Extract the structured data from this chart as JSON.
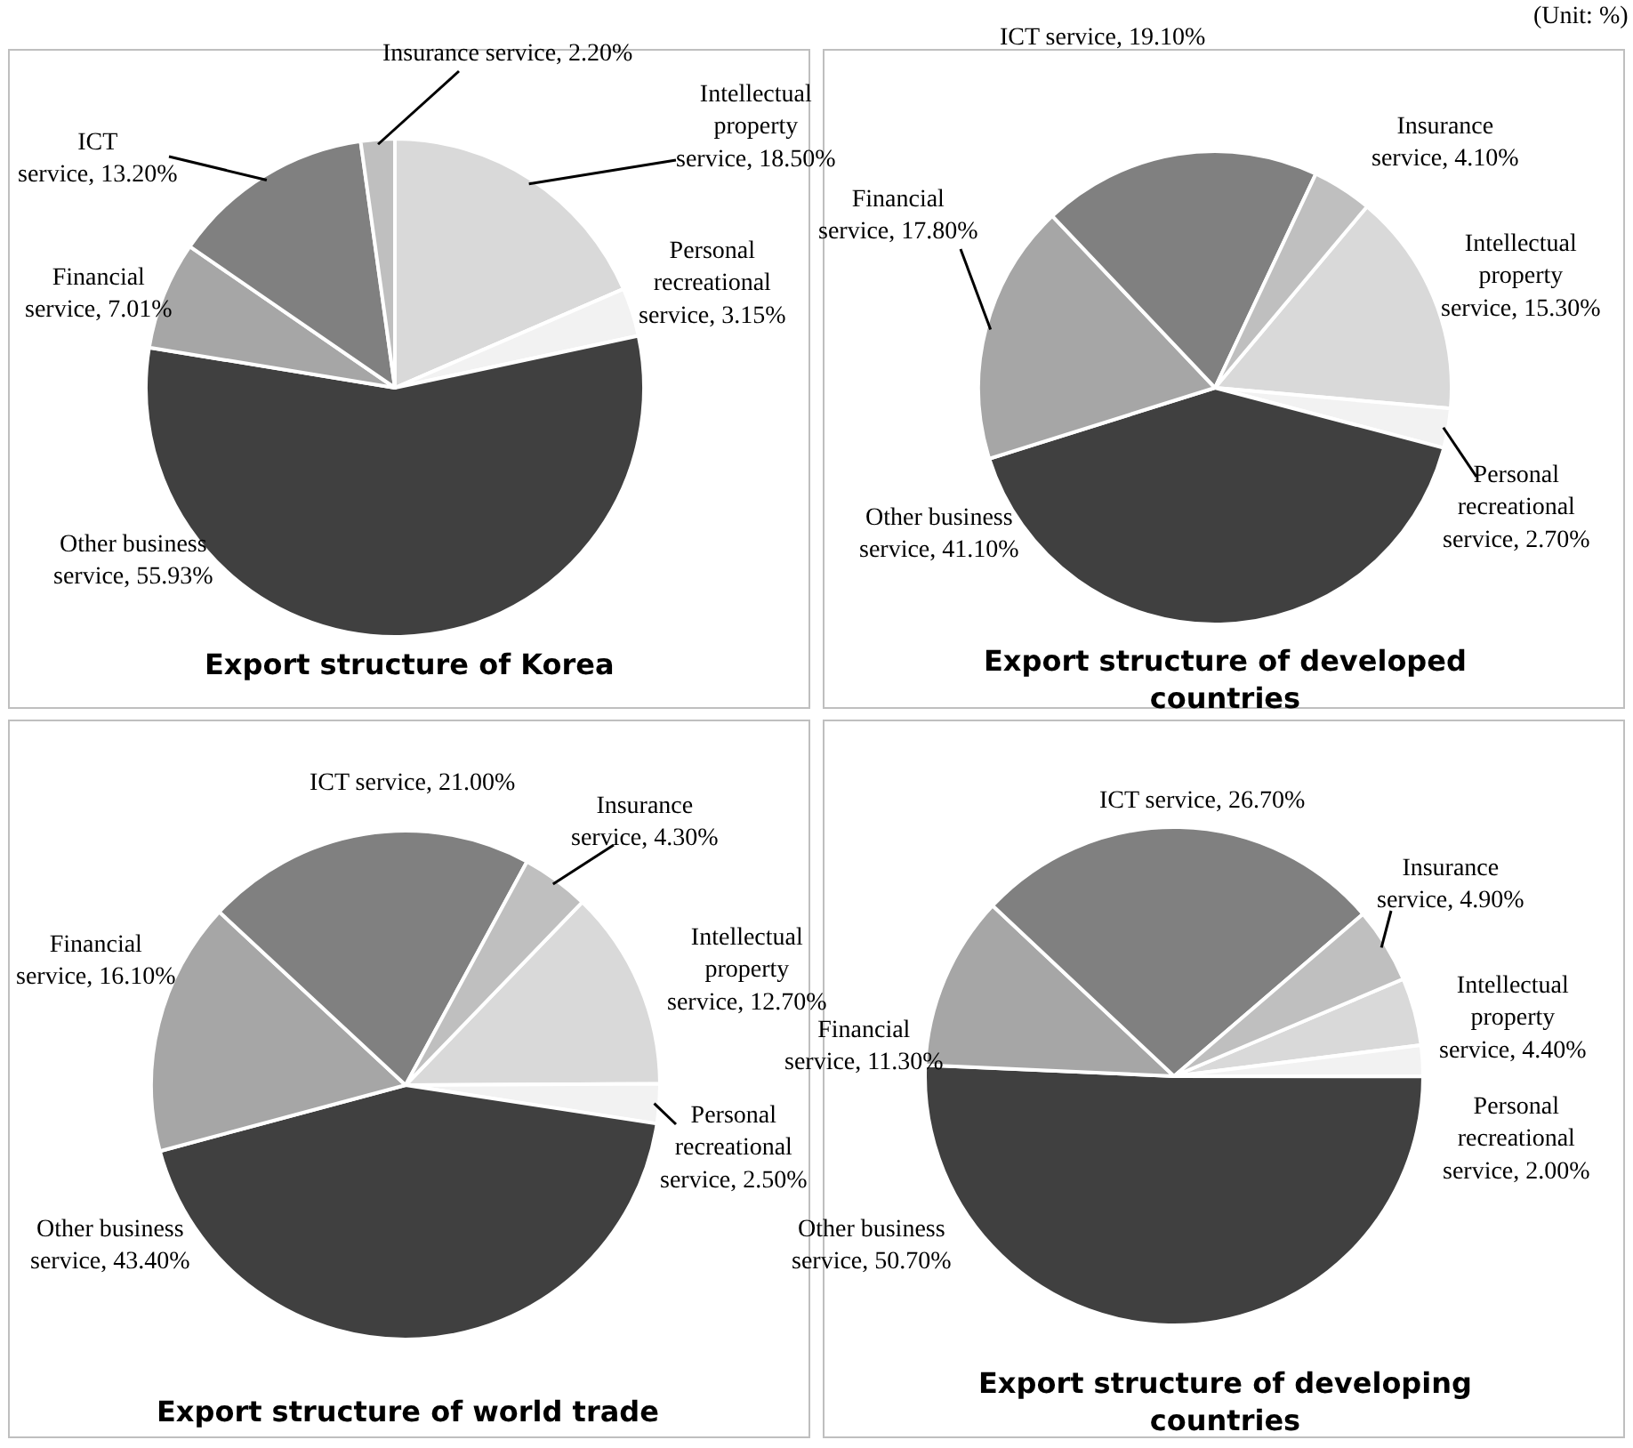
{
  "chart_data": [
    {
      "type": "pie",
      "title": "Export structure of Korea",
      "annotations": [
        "(Unit: %)"
      ],
      "categories": [
        "Intellectual property service",
        "Personal recreational service",
        "Other business service",
        "Financial service",
        "ICT service",
        "Insurance service"
      ],
      "values": [
        18.5,
        3.15,
        55.93,
        7.01,
        13.2,
        2.2
      ],
      "value_labels": [
        "18.50%",
        "3.15%",
        "55.93%",
        "7.01%",
        "13.20%",
        "2.20%"
      ],
      "colors": [
        "#d9d9d9",
        "#f2f2f2",
        "#404040",
        "#a6a6a6",
        "#808080",
        "#bfbfbf"
      ]
    },
    {
      "type": "pie",
      "title": "Export structure of developed countries",
      "categories": [
        "Intellectual property service",
        "Personal recreational service",
        "Other business service",
        "Financial service",
        "ICT service",
        "Insurance service"
      ],
      "values": [
        15.3,
        2.7,
        41.1,
        17.8,
        19.1,
        4.1
      ],
      "value_labels": [
        "15.30%",
        "2.70%",
        "41.10%",
        "17.80%",
        "19.10%",
        "4.10%"
      ],
      "colors": [
        "#d9d9d9",
        "#f2f2f2",
        "#404040",
        "#a6a6a6",
        "#808080",
        "#bfbfbf"
      ]
    },
    {
      "type": "pie",
      "title": "Export structure of world trade",
      "categories": [
        "Intellectual property service",
        "Personal recreational service",
        "Other business service",
        "Financial service",
        "ICT service",
        "Insurance service"
      ],
      "values": [
        12.7,
        2.5,
        43.4,
        16.1,
        21.0,
        4.3
      ],
      "value_labels": [
        "12.70%",
        "2.50%",
        "43.40%",
        "16.10%",
        "21.00%",
        "4.30%"
      ],
      "colors": [
        "#d9d9d9",
        "#f2f2f2",
        "#404040",
        "#a6a6a6",
        "#808080",
        "#bfbfbf"
      ]
    },
    {
      "type": "pie",
      "title": "Export structure of developing countries",
      "categories": [
        "Intellectual property service",
        "Personal recreational service",
        "Other business service",
        "Financial service",
        "ICT service",
        "Insurance service"
      ],
      "values": [
        4.4,
        2.0,
        50.7,
        11.3,
        26.7,
        4.9
      ],
      "value_labels": [
        "4.40%",
        "2.00%",
        "50.70%",
        "11.30%",
        "26.70%",
        "4.90%"
      ],
      "colors": [
        "#d9d9d9",
        "#f2f2f2",
        "#404040",
        "#a6a6a6",
        "#808080",
        "#bfbfbf"
      ]
    }
  ]
}
